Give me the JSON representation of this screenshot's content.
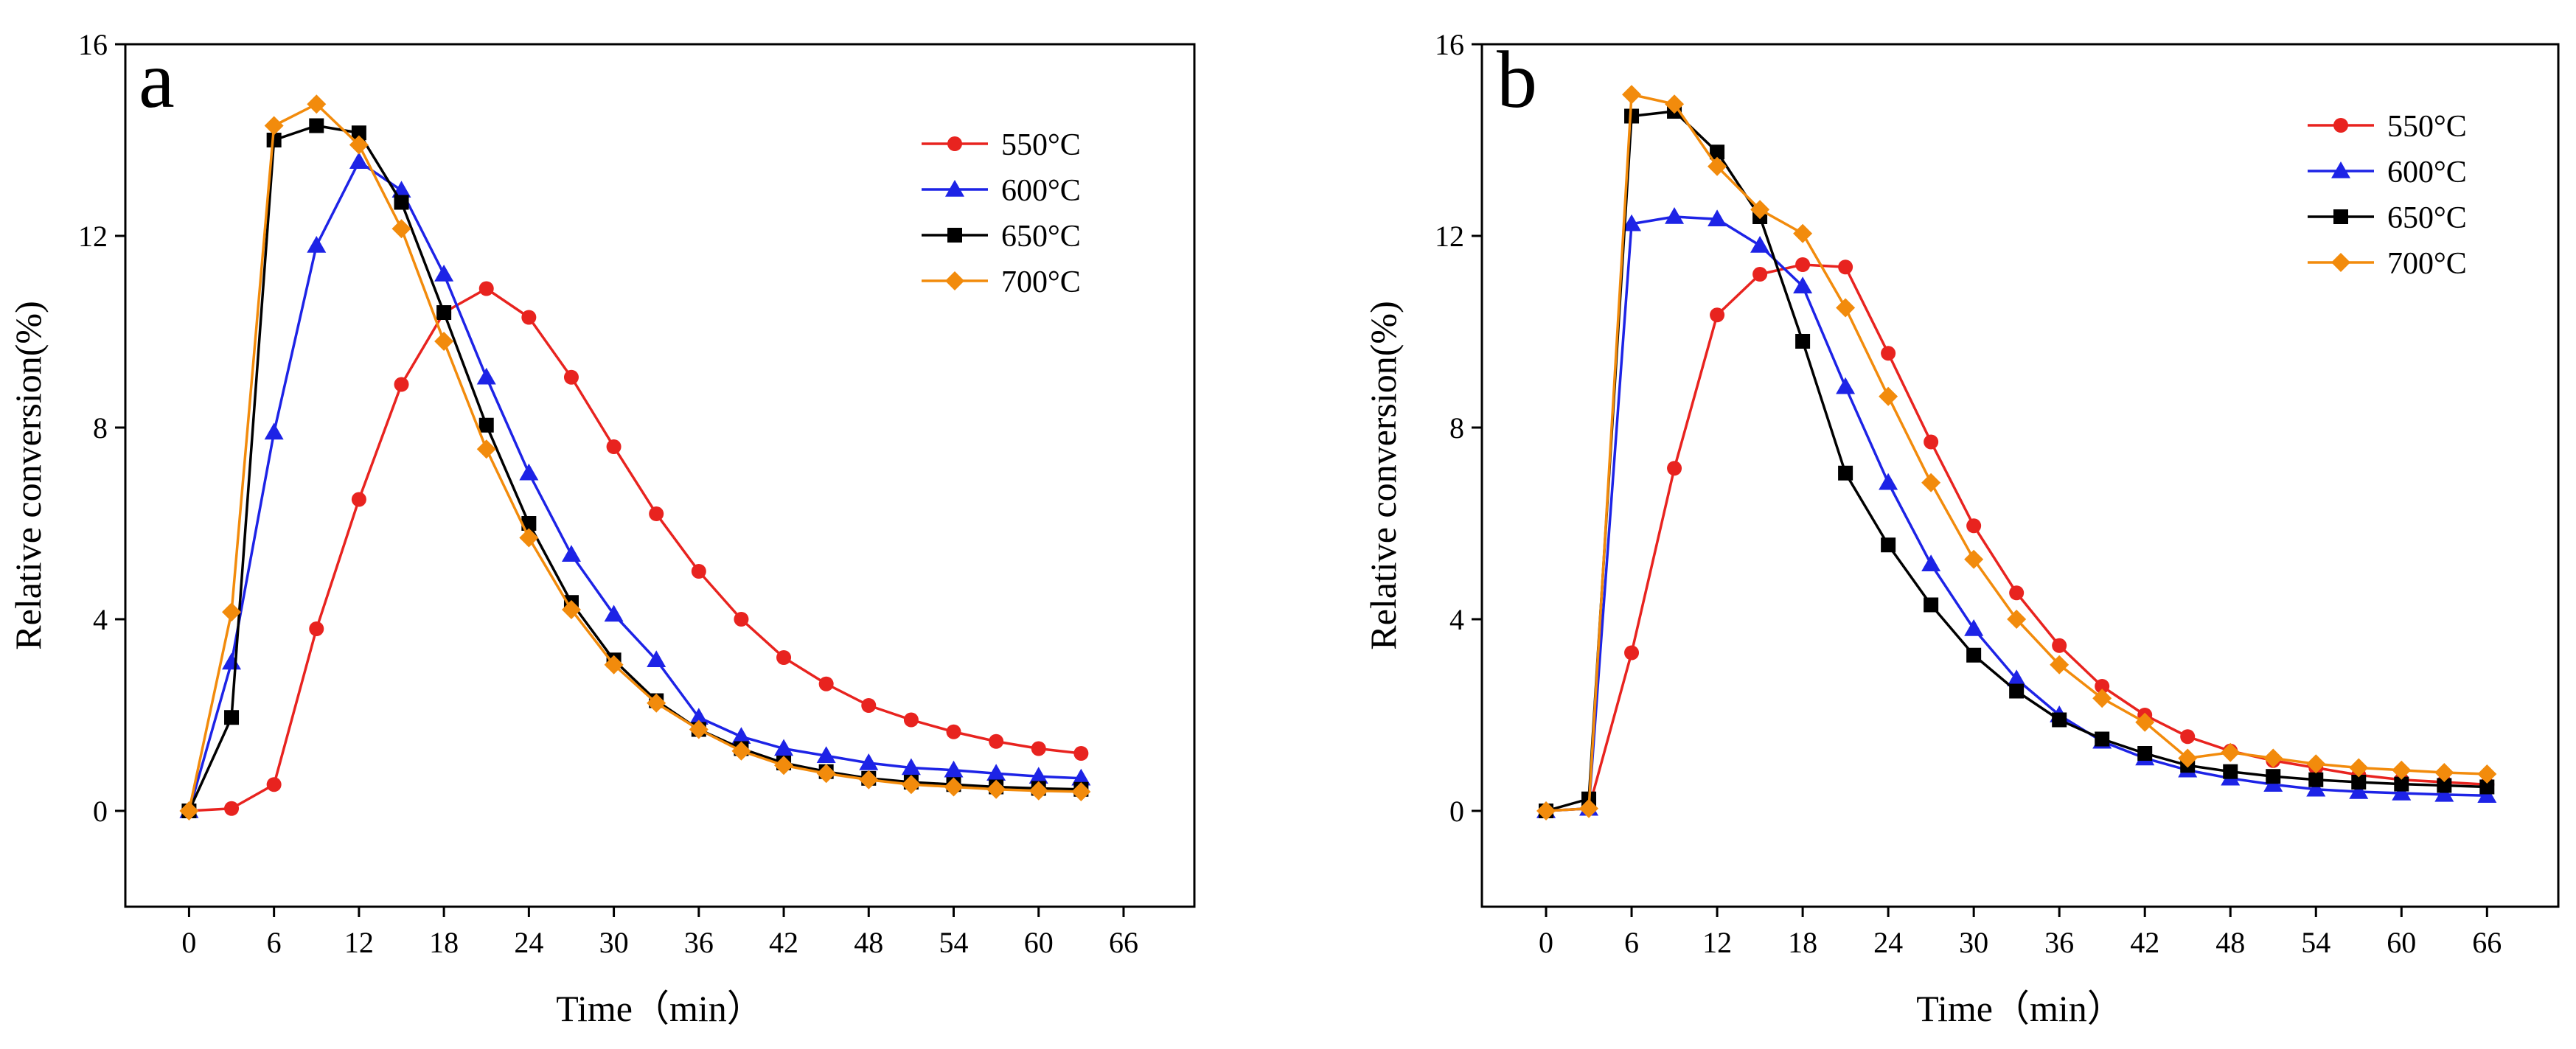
{
  "chart_data": [
    {
      "type": "line",
      "panel_label": "a",
      "xlabel": "Time（min）",
      "ylabel": "Relative conversion(%)",
      "xlim": [
        -4.5,
        71
      ],
      "ylim": [
        -2,
        16
      ],
      "x_ticks": [
        0,
        6,
        12,
        18,
        24,
        30,
        36,
        42,
        48,
        54,
        60,
        66
      ],
      "y_ticks": [
        0,
        4,
        8,
        12,
        16
      ],
      "legend_position": "top-right",
      "series": [
        {
          "name": "550°C",
          "color": "#e8231f",
          "marker": "circle",
          "x": [
            0,
            3,
            6,
            9,
            12,
            15,
            18,
            21,
            24,
            27,
            30,
            33,
            36,
            39,
            42,
            45,
            48,
            51,
            54,
            57,
            60,
            63
          ],
          "y": [
            0,
            0.05,
            0.55,
            3.8,
            6.5,
            8.9,
            10.4,
            10.9,
            10.3,
            9.05,
            7.6,
            6.2,
            5.0,
            4.0,
            3.2,
            2.65,
            2.2,
            1.9,
            1.65,
            1.45,
            1.3,
            1.2
          ]
        },
        {
          "name": "600°C",
          "color": "#1d23e6",
          "marker": "triangle",
          "x": [
            0,
            3,
            6,
            9,
            12,
            15,
            18,
            21,
            24,
            27,
            30,
            33,
            36,
            39,
            42,
            45,
            48,
            51,
            54,
            57,
            60,
            63
          ],
          "y": [
            0,
            3.1,
            7.9,
            11.8,
            13.55,
            12.95,
            11.2,
            9.05,
            7.05,
            5.35,
            4.1,
            3.15,
            1.95,
            1.55,
            1.3,
            1.15,
            1.0,
            0.9,
            0.85,
            0.78,
            0.72,
            0.68
          ]
        },
        {
          "name": "650°C",
          "color": "#000000",
          "marker": "square",
          "x": [
            0,
            3,
            6,
            9,
            12,
            15,
            18,
            21,
            24,
            27,
            30,
            33,
            36,
            39,
            42,
            45,
            48,
            51,
            54,
            57,
            60,
            63
          ],
          "y": [
            0,
            1.95,
            14.0,
            14.3,
            14.15,
            12.7,
            10.4,
            8.05,
            6.0,
            4.35,
            3.15,
            2.3,
            1.7,
            1.3,
            1.0,
            0.82,
            0.68,
            0.6,
            0.55,
            0.5,
            0.47,
            0.45
          ]
        },
        {
          "name": "700°C",
          "color": "#f28b0c",
          "marker": "diamond",
          "x": [
            0,
            3,
            6,
            9,
            12,
            15,
            18,
            21,
            24,
            27,
            30,
            33,
            36,
            39,
            42,
            45,
            48,
            51,
            54,
            57,
            60,
            63
          ],
          "y": [
            0,
            4.15,
            14.3,
            14.75,
            13.9,
            12.15,
            9.8,
            7.55,
            5.7,
            4.2,
            3.05,
            2.25,
            1.7,
            1.25,
            0.95,
            0.78,
            0.65,
            0.55,
            0.5,
            0.45,
            0.42,
            0.4
          ]
        }
      ]
    },
    {
      "type": "line",
      "panel_label": "b",
      "xlabel": "Time（min）",
      "ylabel": "Relative conversion(%)",
      "xlim": [
        -4.5,
        71
      ],
      "ylim": [
        -2,
        16
      ],
      "x_ticks": [
        0,
        6,
        12,
        18,
        24,
        30,
        36,
        42,
        48,
        54,
        60,
        66
      ],
      "y_ticks": [
        0,
        4,
        8,
        12,
        16
      ],
      "legend_position": "top-right",
      "series": [
        {
          "name": "550°C",
          "color": "#e8231f",
          "marker": "circle",
          "x": [
            0,
            3,
            6,
            9,
            12,
            15,
            18,
            21,
            24,
            27,
            30,
            33,
            36,
            39,
            42,
            45,
            48,
            51,
            54,
            57,
            60,
            63,
            66
          ],
          "y": [
            0,
            0.05,
            3.3,
            7.15,
            10.35,
            11.2,
            11.4,
            11.35,
            9.55,
            7.7,
            5.95,
            4.55,
            3.45,
            2.6,
            2.0,
            1.55,
            1.25,
            1.05,
            0.9,
            0.75,
            0.65,
            0.6,
            0.55
          ]
        },
        {
          "name": "600°C",
          "color": "#1d23e6",
          "marker": "triangle",
          "x": [
            0,
            3,
            6,
            9,
            12,
            15,
            18,
            21,
            24,
            27,
            30,
            33,
            36,
            39,
            42,
            45,
            48,
            51,
            54,
            57,
            60,
            63,
            66
          ],
          "y": [
            0,
            0.05,
            12.25,
            12.4,
            12.35,
            11.8,
            10.95,
            8.85,
            6.85,
            5.15,
            3.8,
            2.75,
            2.0,
            1.45,
            1.1,
            0.85,
            0.68,
            0.55,
            0.45,
            0.4,
            0.37,
            0.34,
            0.32
          ]
        },
        {
          "name": "650°C",
          "color": "#000000",
          "marker": "square",
          "x": [
            0,
            3,
            6,
            9,
            12,
            15,
            18,
            21,
            24,
            27,
            30,
            33,
            36,
            39,
            42,
            45,
            48,
            51,
            54,
            57,
            60,
            63,
            66
          ],
          "y": [
            0,
            0.25,
            14.5,
            14.6,
            13.75,
            12.4,
            9.8,
            7.05,
            5.55,
            4.3,
            3.25,
            2.5,
            1.9,
            1.5,
            1.2,
            0.95,
            0.82,
            0.72,
            0.65,
            0.6,
            0.56,
            0.53,
            0.5
          ]
        },
        {
          "name": "700°C",
          "color": "#f28b0c",
          "marker": "diamond",
          "x": [
            0,
            3,
            6,
            9,
            12,
            15,
            18,
            21,
            24,
            27,
            30,
            33,
            36,
            39,
            42,
            45,
            48,
            51,
            54,
            57,
            60,
            63,
            66
          ],
          "y": [
            0,
            0.05,
            14.95,
            14.75,
            13.45,
            12.55,
            12.05,
            10.5,
            8.65,
            6.85,
            5.25,
            4.0,
            3.05,
            2.35,
            1.85,
            1.1,
            1.22,
            1.1,
            0.98,
            0.9,
            0.85,
            0.8,
            0.77
          ]
        }
      ]
    }
  ]
}
